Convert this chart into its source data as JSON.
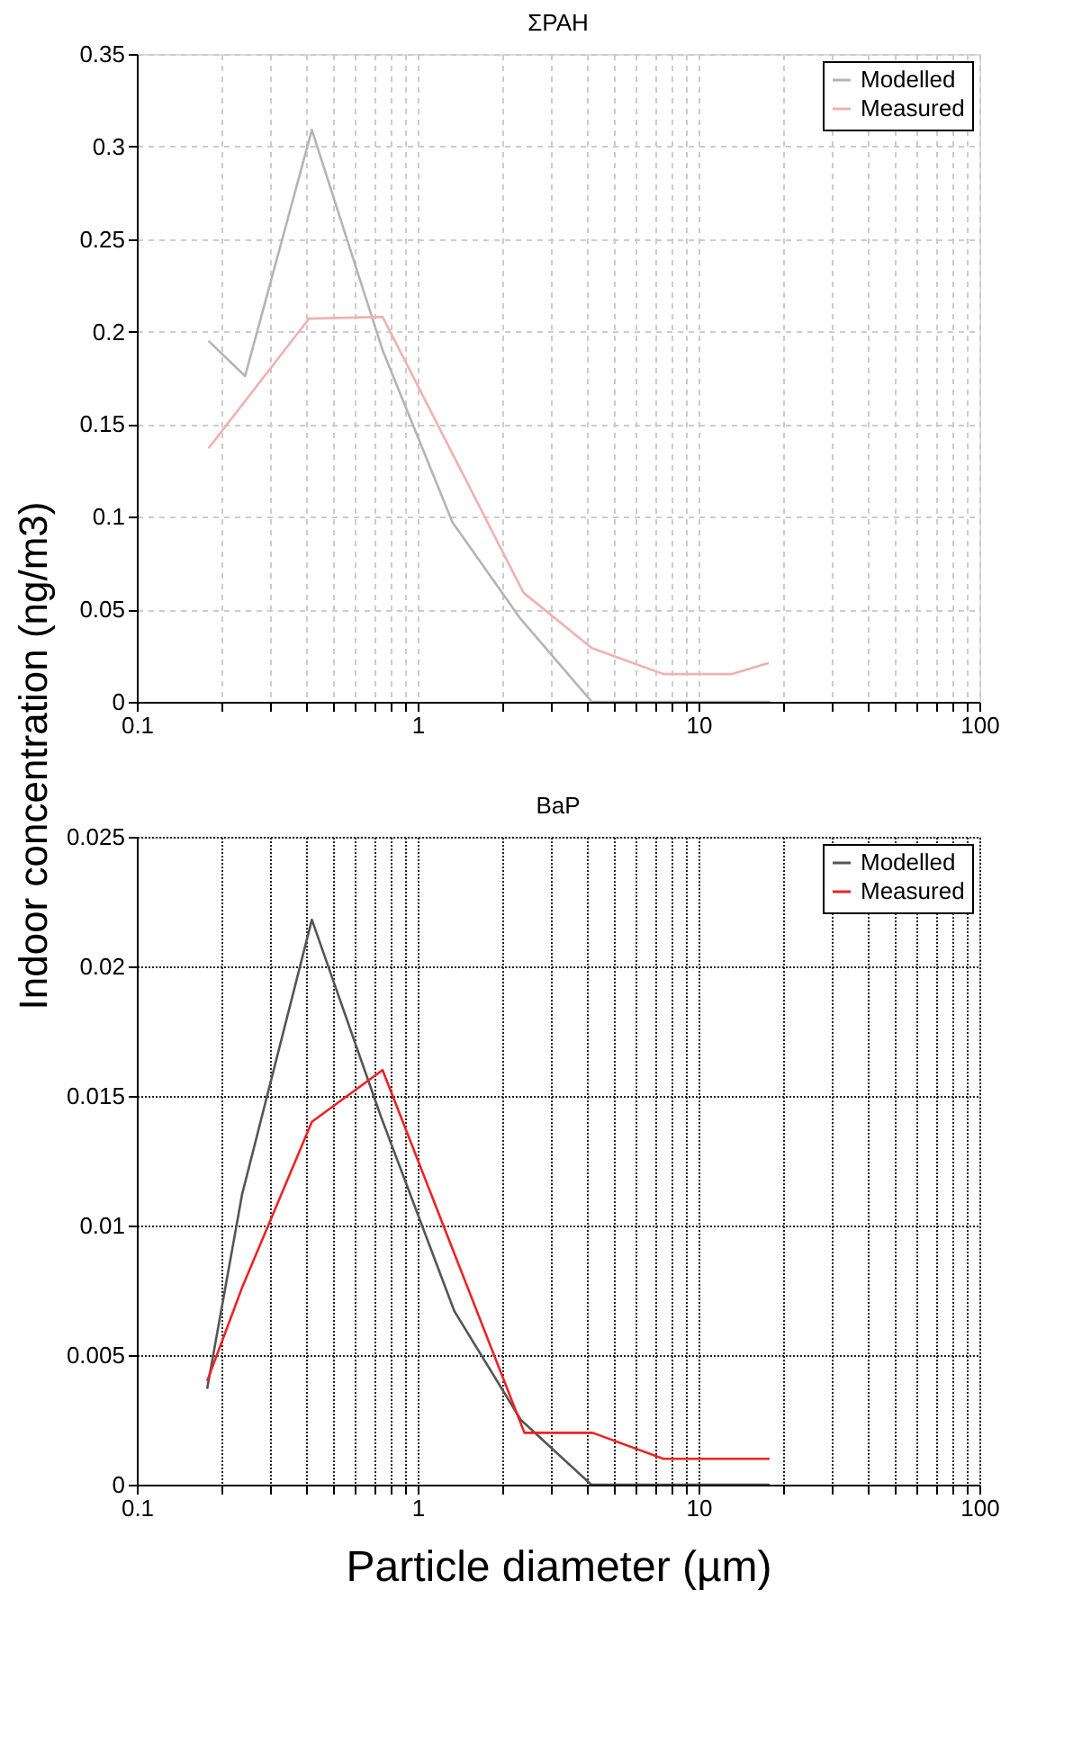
{
  "chart_data": [
    {
      "type": "line",
      "title": "ΣPAH",
      "ylabel": "Indoor concentration (ng/m3)",
      "log": "x",
      "grid": true,
      "legend": "top right",
      "line_style": "solid",
      "xlim": [
        0.1,
        100
      ],
      "ylim": [
        0,
        0.35
      ],
      "xticks": [
        0.1,
        {
          "value": 0.2,
          "label": null
        },
        {
          "value": 0.3,
          "label": null
        },
        {
          "value": 0.4,
          "label": null
        },
        {
          "value": 0.5,
          "label": null
        },
        {
          "value": 0.6,
          "label": null
        },
        {
          "value": 0.7,
          "label": null
        },
        {
          "value": 0.8,
          "label": null
        },
        {
          "value": 0.9,
          "label": null
        },
        1,
        {
          "value": 2,
          "label": null
        },
        {
          "value": 3,
          "label": null
        },
        {
          "value": 4,
          "label": null
        },
        {
          "value": 5,
          "label": null
        },
        {
          "value": 6,
          "label": null
        },
        {
          "value": 7,
          "label": null
        },
        {
          "value": 8,
          "label": null
        },
        {
          "value": 9,
          "label": null
        },
        10,
        {
          "value": 20,
          "label": null
        },
        {
          "value": 30,
          "label": null
        },
        {
          "value": 40,
          "label": null
        },
        {
          "value": 50,
          "label": null
        },
        {
          "value": 60,
          "label": null
        },
        {
          "value": 70,
          "label": null
        },
        {
          "value": 80,
          "label": null
        },
        {
          "value": 90,
          "label": null
        },
        100
      ],
      "yticks": [
        0,
        0.05,
        0.1,
        0.15,
        0.2,
        0.25,
        0.3,
        0.35
      ],
      "series": [
        {
          "name": "Modelled",
          "color": "#b4b4b4",
          "x": [
            0.18,
            0.243,
            0.42,
            0.75,
            1.33,
            2.32,
            4.17,
            18.0
          ],
          "values": [
            0.195,
            0.176,
            0.309,
            0.19,
            0.097,
            0.045,
            0.0,
            0.0
          ]
        },
        {
          "name": "Measured",
          "color": "#f2b0b0",
          "x": [
            0.18,
            0.41,
            0.75,
            2.38,
            4.17,
            7.5,
            13.1,
            17.8
          ],
          "values": [
            0.137,
            0.207,
            0.208,
            0.059,
            0.029,
            0.015,
            0.015,
            0.021
          ]
        }
      ]
    },
    {
      "type": "line",
      "title": "BaP",
      "xlabel": "Particle diameter (µm)",
      "log": "x",
      "grid": true,
      "legend": "top right",
      "line_style": "solid",
      "xlim": [
        0.1,
        100
      ],
      "ylim": [
        0,
        0.025
      ],
      "xticks": [
        0.1,
        {
          "value": 0.2,
          "label": null
        },
        {
          "value": 0.3,
          "label": null
        },
        {
          "value": 0.4,
          "label": null
        },
        {
          "value": 0.5,
          "label": null
        },
        {
          "value": 0.6,
          "label": null
        },
        {
          "value": 0.7,
          "label": null
        },
        {
          "value": 0.8,
          "label": null
        },
        {
          "value": 0.9,
          "label": null
        },
        1,
        {
          "value": 2,
          "label": null
        },
        {
          "value": 3,
          "label": null
        },
        {
          "value": 4,
          "label": null
        },
        {
          "value": 5,
          "label": null
        },
        {
          "value": 6,
          "label": null
        },
        {
          "value": 7,
          "label": null
        },
        {
          "value": 8,
          "label": null
        },
        {
          "value": 9,
          "label": null
        },
        10,
        {
          "value": 20,
          "label": null
        },
        {
          "value": 30,
          "label": null
        },
        {
          "value": 40,
          "label": null
        },
        {
          "value": 50,
          "label": null
        },
        {
          "value": 60,
          "label": null
        },
        {
          "value": 70,
          "label": null
        },
        {
          "value": 80,
          "label": null
        },
        {
          "value": 90,
          "label": null
        },
        100
      ],
      "yticks": [
        0,
        0.005,
        0.01,
        0.015,
        0.02,
        0.025
      ],
      "series": [
        {
          "name": "Modelled",
          "color": "#555555",
          "x": [
            0.178,
            0.237,
            0.42,
            0.74,
            1.35,
            2.33,
            4.15,
            17.9
          ],
          "values": [
            0.0037,
            0.0112,
            0.0218,
            0.0142,
            0.0067,
            0.0025,
            0.0,
            0.0
          ]
        },
        {
          "name": "Measured",
          "color": "#ee2222",
          "x": [
            0.178,
            0.237,
            0.42,
            0.75,
            2.4,
            4.2,
            7.5,
            17.9
          ],
          "values": [
            0.004,
            0.0076,
            0.014,
            0.016,
            0.002,
            0.002,
            0.001,
            0.001
          ]
        }
      ]
    }
  ]
}
